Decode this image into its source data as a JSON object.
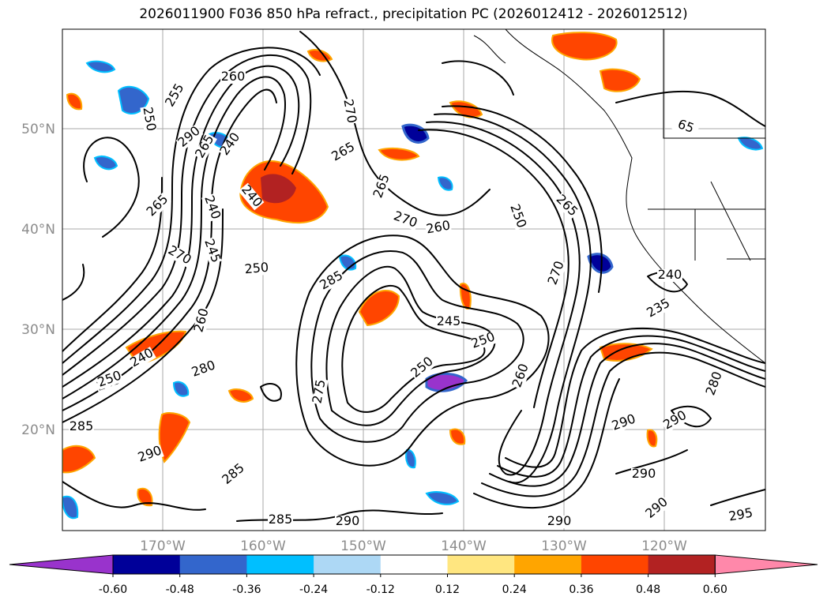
{
  "title": "2026011900 F036 850 hPa refract., precipitation PC (2026012412 - 2026012512)",
  "map": {
    "lat_labels": [
      "50°N",
      "40°N",
      "30°N",
      "20°N"
    ],
    "lon_labels": [
      "170°W",
      "160°W",
      "150°W",
      "140°W",
      "130°W",
      "120°W"
    ],
    "grid_color": "#aaaaaa",
    "contour_labels": [
      "260",
      "255",
      "250",
      "290",
      "265",
      "240",
      "270",
      "265",
      "240",
      "265",
      "265",
      "270",
      "270",
      "260",
      "250",
      "245",
      "240",
      "265",
      "250",
      "270",
      "260",
      "280",
      "285",
      "250",
      "245",
      "250",
      "260",
      "240",
      "245",
      "275",
      "290",
      "285",
      "290",
      "290",
      "295",
      "290",
      "290",
      "290",
      "280",
      "235",
      "240",
      "65",
      "285",
      "250",
      "290",
      "285"
    ]
  },
  "colorbar": {
    "ticks": [
      "-0.60",
      "-0.48",
      "-0.36",
      "-0.24",
      "-0.12",
      "0.12",
      "0.24",
      "0.36",
      "0.48",
      "0.60"
    ],
    "colors": [
      "#9933cc",
      "#000099",
      "#3366cc",
      "#00bfff",
      "#add8f5",
      "#ffffff",
      "#ffe680",
      "#ffa500",
      "#ff4500",
      "#b22222",
      "#ff88aa"
    ]
  }
}
